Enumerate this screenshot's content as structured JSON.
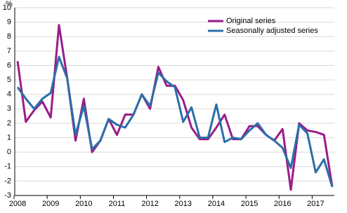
{
  "chart_data": {
    "type": "line",
    "y_label": "%",
    "categories": [
      "2008",
      null,
      null,
      null,
      "2009",
      null,
      null,
      null,
      "2010",
      null,
      null,
      null,
      "2011",
      null,
      null,
      null,
      "2012",
      null,
      null,
      null,
      "2013",
      null,
      null,
      null,
      "2014",
      null,
      null,
      null,
      "2015",
      null,
      null,
      null,
      "2016",
      null,
      null,
      null,
      "2017",
      null,
      null
    ],
    "series": [
      {
        "name": "Original series",
        "color": "#9b1c8a",
        "values": [
          6.3,
          2.1,
          2.9,
          3.5,
          2.4,
          8.8,
          5.1,
          0.8,
          3.7,
          0.0,
          0.8,
          2.3,
          1.2,
          2.6,
          2.6,
          4.0,
          3.0,
          5.9,
          4.6,
          4.6,
          3.6,
          1.7,
          0.9,
          0.9,
          1.7,
          2.6,
          0.9,
          0.9,
          1.8,
          1.8,
          1.2,
          0.8,
          1.6,
          -2.6,
          2.0,
          1.5,
          1.4,
          1.2,
          -2.4
        ]
      },
      {
        "name": "Seasonally adjusted series",
        "color": "#2a6fa8",
        "values": [
          4.5,
          3.7,
          3.0,
          3.7,
          4.1,
          6.6,
          5.1,
          1.2,
          3.2,
          0.2,
          0.8,
          2.3,
          1.9,
          1.7,
          2.6,
          4.0,
          3.2,
          5.5,
          4.9,
          4.5,
          2.1,
          3.1,
          1.0,
          1.0,
          3.3,
          0.7,
          1.0,
          0.9,
          1.5,
          2.0,
          1.2,
          0.8,
          0.3,
          -1.1,
          1.9,
          1.3,
          -1.4,
          -0.5,
          -2.4
        ]
      }
    ],
    "ylim": [
      -3,
      10
    ],
    "yticks": [
      -3,
      -2,
      -1,
      0,
      1,
      2,
      3,
      4,
      5,
      6,
      7,
      8,
      9,
      10
    ],
    "grid": true,
    "legend": "top-right"
  }
}
